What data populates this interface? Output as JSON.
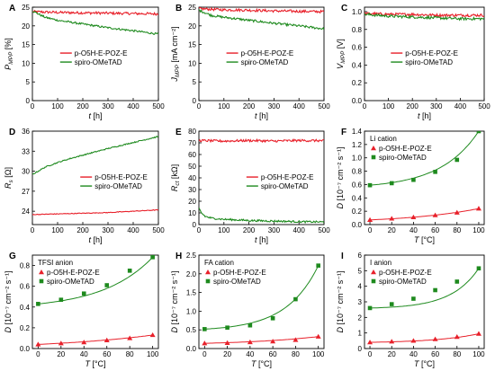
{
  "colors": {
    "red": "#e8202a",
    "green": "#1e8a1e",
    "axis": "#000000"
  },
  "chart_data": [
    {
      "id": "A",
      "letter": "A",
      "type": "line",
      "ylabel": "P",
      "ylabel_sub": "MPP",
      "ylabel_unit": " [%]",
      "xlabel": "t",
      "xlabel_unit": " [h]",
      "xlim": [
        0,
        500
      ],
      "ylim": [
        0,
        25
      ],
      "xticks": [
        0,
        100,
        200,
        300,
        400,
        500
      ],
      "yticks": [
        0,
        5,
        10,
        15,
        20,
        25
      ],
      "legend": "center",
      "series": [
        {
          "name": "p-O5H-E-POZ-E",
          "color": "red",
          "noise": 0.35,
          "x": [
            0,
            100,
            200,
            300,
            400,
            500
          ],
          "y": [
            23.8,
            23.6,
            23.5,
            23.4,
            23.3,
            23.2
          ]
        },
        {
          "name": "spiro-OMeTAD",
          "color": "green",
          "noise": 0.25,
          "x": [
            0,
            50,
            100,
            200,
            300,
            400,
            500
          ],
          "y": [
            24.0,
            22.3,
            21.5,
            20.5,
            19.5,
            18.7,
            17.8
          ]
        }
      ]
    },
    {
      "id": "B",
      "letter": "B",
      "type": "line",
      "ylabel": "J",
      "ylabel_sub": "MPP",
      "ylabel_unit": " [mA cm⁻²]",
      "xlabel": "t",
      "xlabel_unit": " [h]",
      "xlim": [
        0,
        500
      ],
      "ylim": [
        0,
        25
      ],
      "xticks": [
        0,
        100,
        200,
        300,
        400,
        500
      ],
      "yticks": [
        0,
        5,
        10,
        15,
        20,
        25
      ],
      "legend": "center",
      "series": [
        {
          "name": "p-O5H-E-POZ-E",
          "color": "red",
          "noise": 0.35,
          "x": [
            0,
            100,
            200,
            300,
            400,
            500
          ],
          "y": [
            24.6,
            24.3,
            24.2,
            24.0,
            23.9,
            23.8
          ]
        },
        {
          "name": "spiro-OMeTAD",
          "color": "green",
          "noise": 0.3,
          "x": [
            0,
            50,
            100,
            200,
            300,
            400,
            500
          ],
          "y": [
            24.2,
            22.8,
            22.3,
            21.5,
            20.7,
            20.0,
            19.2
          ]
        }
      ]
    },
    {
      "id": "C",
      "letter": "C",
      "type": "line",
      "ylabel": "V",
      "ylabel_sub": "MPP",
      "ylabel_unit": " [V]",
      "xlabel": "t",
      "xlabel_unit": " [h]",
      "xlim": [
        0,
        500
      ],
      "ylim": [
        0,
        1.05
      ],
      "xticks": [
        0,
        100,
        200,
        300,
        400,
        500
      ],
      "yticks": [
        0.0,
        0.2,
        0.4,
        0.6,
        0.8,
        1.0
      ],
      "ytick_decimals": 1,
      "legend": "center",
      "series": [
        {
          "name": "p-O5H-E-POZ-E",
          "color": "red",
          "noise": 0.015,
          "x": [
            0,
            100,
            200,
            300,
            400,
            500
          ],
          "y": [
            0.98,
            0.97,
            0.97,
            0.96,
            0.96,
            0.96
          ]
        },
        {
          "name": "spiro-OMeTAD",
          "color": "green",
          "noise": 0.015,
          "x": [
            0,
            100,
            200,
            300,
            400,
            500
          ],
          "y": [
            0.97,
            0.95,
            0.94,
            0.93,
            0.92,
            0.92
          ]
        }
      ]
    },
    {
      "id": "D",
      "letter": "D",
      "type": "line",
      "ylabel": "R",
      "ylabel_sub": "s",
      "ylabel_unit": " [Ω]",
      "xlabel": "t",
      "xlabel_unit": " [h]",
      "xlim": [
        0,
        500
      ],
      "ylim": [
        22,
        36
      ],
      "xticks": [
        0,
        100,
        200,
        300,
        400,
        500
      ],
      "yticks": [
        24,
        27,
        30,
        33,
        36
      ],
      "legend": "center-right",
      "series": [
        {
          "name": "p-O5H-E-POZ-E",
          "color": "red",
          "noise": 0.05,
          "x": [
            0,
            100,
            200,
            300,
            400,
            500
          ],
          "y": [
            23.5,
            23.6,
            23.7,
            23.8,
            24.0,
            24.2
          ]
        },
        {
          "name": "spiro-OMeTAD",
          "color": "green",
          "noise": 0.08,
          "x": [
            0,
            50,
            100,
            150,
            200,
            300,
            400,
            500
          ],
          "y": [
            29.5,
            30.6,
            31.3,
            31.9,
            32.4,
            33.4,
            34.3,
            35.2
          ]
        }
      ]
    },
    {
      "id": "E",
      "letter": "E",
      "type": "line",
      "ylabel": "R",
      "ylabel_sub": "ct",
      "ylabel_unit": " [kΩ]",
      "xlabel": "t",
      "xlabel_unit": " [h]",
      "xlim": [
        0,
        500
      ],
      "ylim": [
        0,
        80
      ],
      "xticks": [
        0,
        100,
        200,
        300,
        400,
        500
      ],
      "yticks": [
        0,
        10,
        20,
        30,
        40,
        50,
        60,
        70,
        80
      ],
      "legend": "center-right",
      "series": [
        {
          "name": "p-O5H-E-POZ-E",
          "color": "red",
          "noise": 1.0,
          "x": [
            0,
            100,
            200,
            300,
            400,
            500
          ],
          "y": [
            72,
            71.5,
            72,
            71.5,
            72,
            71.8
          ]
        },
        {
          "name": "spiro-OMeTAD",
          "color": "green",
          "noise": 0.8,
          "x": [
            0,
            10,
            25,
            50,
            100,
            200,
            300,
            400,
            500
          ],
          "y": [
            14,
            10,
            7,
            5.5,
            4.5,
            3.5,
            3,
            2.5,
            2.2
          ]
        }
      ]
    },
    {
      "id": "F",
      "letter": "F",
      "type": "scatter",
      "ylabel": "D",
      "ylabel_unit": " [10⁻⁷ cm⁻² s⁻¹]",
      "xlabel": "T",
      "xlabel_unit": " [°C]",
      "xlim": [
        -5,
        105
      ],
      "ylim": [
        0,
        1.4
      ],
      "xticks": [
        0,
        20,
        40,
        60,
        80,
        100
      ],
      "yticks": [
        0.0,
        0.2,
        0.4,
        0.6,
        0.8,
        1.0,
        1.2,
        1.4
      ],
      "ytick_decimals": 1,
      "annotation": "Li cation",
      "legend": "top-left",
      "series": [
        {
          "name": "p-O5H-E-POZ-E",
          "color": "red",
          "marker": "triangle",
          "x": [
            0,
            20,
            40,
            60,
            80,
            100
          ],
          "y": [
            0.07,
            0.09,
            0.11,
            0.14,
            0.18,
            0.24
          ]
        },
        {
          "name": "spiro-OMeTAD",
          "color": "green",
          "marker": "square",
          "x": [
            0,
            20,
            40,
            60,
            80,
            100
          ],
          "y": [
            0.59,
            0.62,
            0.67,
            0.79,
            0.97,
            1.4
          ]
        }
      ]
    },
    {
      "id": "G",
      "letter": "G",
      "type": "scatter",
      "ylabel": "D",
      "ylabel_unit": " [10⁻⁷ cm⁻² s⁻¹]",
      "xlabel": "T",
      "xlabel_unit": " [°C]",
      "xlim": [
        -5,
        105
      ],
      "ylim": [
        0,
        0.9
      ],
      "xticks": [
        0,
        20,
        40,
        60,
        80,
        100
      ],
      "yticks": [
        0.0,
        0.2,
        0.4,
        0.6,
        0.8
      ],
      "ytick_decimals": 1,
      "annotation": "TFSI anion",
      "legend": "top-left",
      "series": [
        {
          "name": "p-O5H-E-POZ-E",
          "color": "red",
          "marker": "triangle",
          "x": [
            0,
            20,
            40,
            60,
            80,
            100
          ],
          "y": [
            0.04,
            0.05,
            0.06,
            0.08,
            0.1,
            0.13
          ]
        },
        {
          "name": "spiro-OMeTAD",
          "color": "green",
          "marker": "square",
          "x": [
            0,
            20,
            40,
            60,
            80,
            100
          ],
          "y": [
            0.43,
            0.47,
            0.53,
            0.61,
            0.75,
            0.88
          ]
        }
      ]
    },
    {
      "id": "H",
      "letter": "H",
      "type": "scatter",
      "ylabel": "D",
      "ylabel_unit": " [10⁻⁷ cm⁻² s⁻¹]",
      "xlabel": "T",
      "xlabel_unit": " [°C]",
      "xlim": [
        -5,
        105
      ],
      "ylim": [
        0,
        2.5
      ],
      "xticks": [
        0,
        20,
        40,
        60,
        80,
        100
      ],
      "yticks": [
        0.0,
        0.5,
        1.0,
        1.5,
        2.0,
        2.5
      ],
      "ytick_decimals": 1,
      "annotation": "FA cation",
      "legend": "top-left",
      "series": [
        {
          "name": "p-O5H-E-POZ-E",
          "color": "red",
          "marker": "triangle",
          "x": [
            0,
            20,
            40,
            60,
            80,
            100
          ],
          "y": [
            0.14,
            0.15,
            0.17,
            0.19,
            0.23,
            0.32
          ]
        },
        {
          "name": "spiro-OMeTAD",
          "color": "green",
          "marker": "square",
          "x": [
            0,
            20,
            40,
            60,
            80,
            100
          ],
          "y": [
            0.52,
            0.56,
            0.62,
            0.81,
            1.32,
            2.22
          ]
        }
      ]
    },
    {
      "id": "I",
      "letter": "I",
      "type": "scatter",
      "ylabel": "D",
      "ylabel_unit": " [10⁻⁷ cm⁻² s⁻¹]",
      "xlabel": "T",
      "xlabel_unit": " [°C]",
      "xlim": [
        -5,
        105
      ],
      "ylim": [
        0,
        6
      ],
      "xticks": [
        0,
        20,
        40,
        60,
        80,
        100
      ],
      "yticks": [
        0,
        1,
        2,
        3,
        4,
        5,
        6
      ],
      "annotation": "I anion",
      "legend": "top-left",
      "series": [
        {
          "name": "p-O5H-E-POZ-E",
          "color": "red",
          "marker": "triangle",
          "x": [
            0,
            20,
            40,
            60,
            80,
            100
          ],
          "y": [
            0.4,
            0.45,
            0.5,
            0.6,
            0.75,
            0.95
          ]
        },
        {
          "name": "spiro-OMeTAD",
          "color": "green",
          "marker": "square",
          "x": [
            0,
            20,
            40,
            60,
            80,
            100
          ],
          "y": [
            2.6,
            2.85,
            3.2,
            3.75,
            4.3,
            5.15
          ]
        }
      ]
    }
  ]
}
